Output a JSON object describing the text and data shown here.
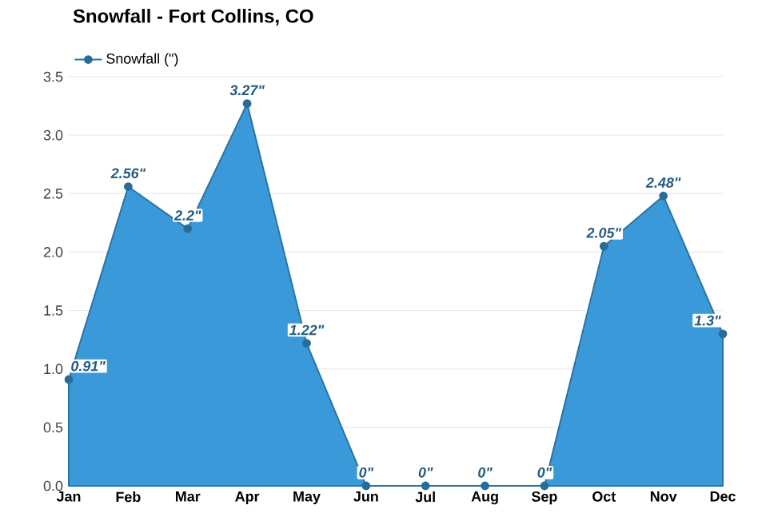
{
  "chart_data": {
    "type": "area",
    "title": "Snowfall - Fort Collins, CO",
    "categories": [
      "Jan",
      "Feb",
      "Mar",
      "Apr",
      "May",
      "Jun",
      "Jul",
      "Aug",
      "Sep",
      "Oct",
      "Nov",
      "Dec"
    ],
    "series": [
      {
        "name": "Snowfall (\")",
        "color": "#3a9ad9",
        "values": [
          0.91,
          2.56,
          2.2,
          3.27,
          1.22,
          0,
          0,
          0,
          0,
          2.05,
          2.48,
          1.3
        ],
        "value_labels": [
          "0.91\"",
          "2.56\"",
          "2.2\"",
          "3.27\"",
          "1.22\"",
          "0\"",
          "0\"",
          "0\"",
          "0\"",
          "2.05\"",
          "2.48\"",
          "1.3\""
        ]
      }
    ],
    "ylim": [
      0,
      3.5
    ],
    "yticks": [
      {
        "value": 0,
        "label": "0.0"
      },
      {
        "value": 0.5,
        "label": "0.5"
      },
      {
        "value": 1,
        "label": "1.0"
      },
      {
        "value": 1.5,
        "label": "1.5"
      },
      {
        "value": 2,
        "label": "2.0"
      },
      {
        "value": 2.5,
        "label": "2.5"
      },
      {
        "value": 3,
        "label": "3.0"
      },
      {
        "value": 3.5,
        "label": "3.5"
      }
    ],
    "grid": "y",
    "legend": "top left",
    "marker": "circle",
    "line_style": "solid"
  }
}
